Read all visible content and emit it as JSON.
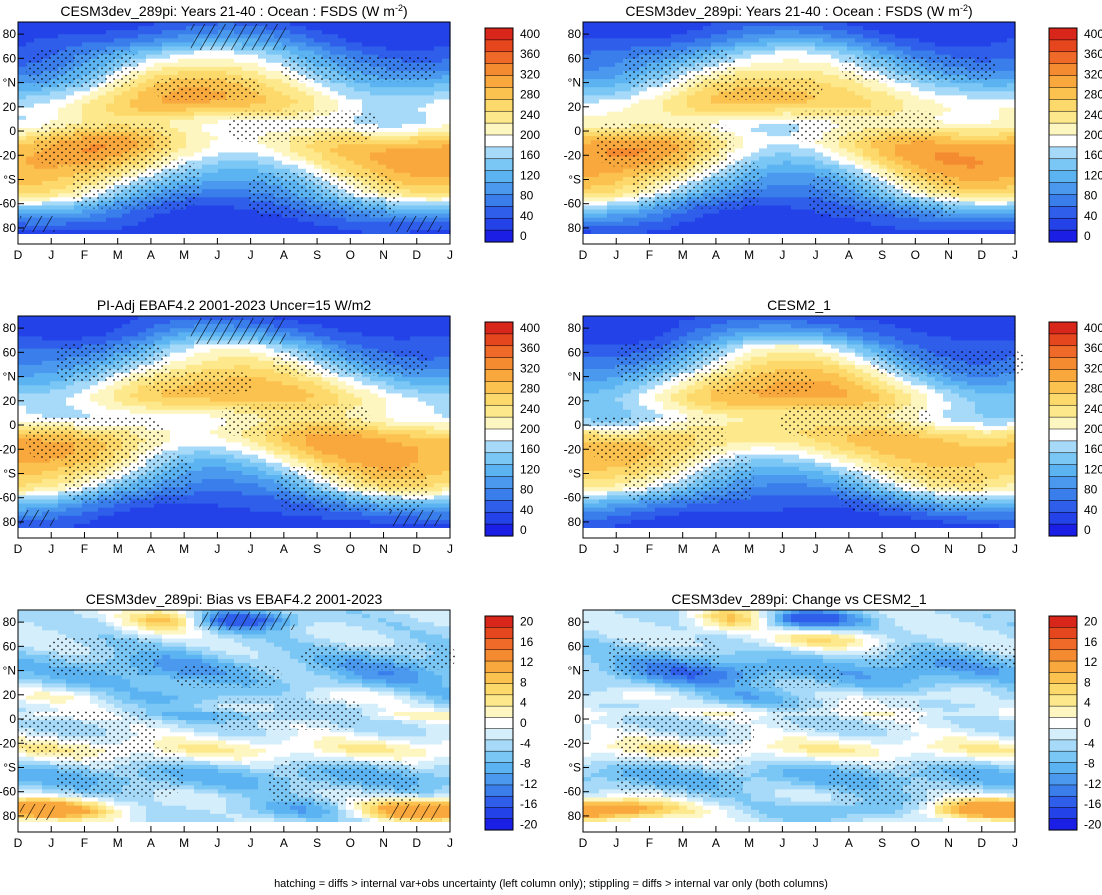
{
  "caption": "hatching = diffs > internal var+obs uncertainty (left column only); stippling = diffs > internal var only (both columns)",
  "palettes": {
    "abs": [
      "#1b1fe6",
      "#2342e8",
      "#2f5fea",
      "#3a7eec",
      "#4a99ef",
      "#5cb3f2",
      "#7ac6f4",
      "#a6daf8",
      "#ffffff",
      "#fef6c0",
      "#fde98c",
      "#fdd86a",
      "#fcc24f",
      "#f9a83d",
      "#f58b31",
      "#ef6a28",
      "#e6461e",
      "#d8261a"
    ],
    "diff": [
      "#1b1fe6",
      "#2342e8",
      "#2f5fea",
      "#3a7eec",
      "#4a99ef",
      "#5cb3f2",
      "#7ac6f4",
      "#a6daf8",
      "#d5eefb",
      "#ffffff",
      "#fef6c0",
      "#fde98c",
      "#fdd86a",
      "#fcc24f",
      "#f9a83d",
      "#f58b31",
      "#ef6a28",
      "#e6461e",
      "#d8261a"
    ]
  },
  "chart_data": [
    {
      "type": "heatmap",
      "id": "p1",
      "title": "CESM3dev_289pi: Years 21-40 : Ocean : FSDS (W m",
      "title_sup": "-2",
      "title_end": ")",
      "kind": "abs",
      "variant": 0,
      "hatched": true,
      "x": [
        "D",
        "J",
        "F",
        "M",
        "A",
        "M",
        "J",
        "J",
        "A",
        "S",
        "O",
        "N",
        "D",
        "J"
      ],
      "y_ticks": [
        "80",
        "60",
        "°N",
        "20",
        "0",
        "-20",
        "°S",
        "-60",
        "80"
      ],
      "colorbar_labels": [
        "400",
        "360",
        "320",
        "280",
        "240",
        "200",
        "160",
        "120",
        "80",
        "40",
        "0"
      ]
    },
    {
      "type": "heatmap",
      "id": "p2",
      "title": "CESM3dev_289pi: Years 21-40 : Ocean : FSDS (W m",
      "title_sup": "-2",
      "title_end": ")",
      "kind": "abs",
      "variant": 1,
      "hatched": false,
      "x": [
        "D",
        "J",
        "F",
        "M",
        "A",
        "M",
        "J",
        "J",
        "A",
        "S",
        "O",
        "N",
        "D",
        "J"
      ],
      "y_ticks": [
        "80",
        "60",
        "°N",
        "20",
        "0",
        "-20",
        "°S",
        "-60",
        "80"
      ],
      "colorbar_labels": [
        "400",
        "360",
        "320",
        "280",
        "240",
        "200",
        "160",
        "120",
        "80",
        "40",
        "0"
      ]
    },
    {
      "type": "heatmap",
      "id": "p3",
      "title": "PI-Adj EBAF4.2 2001-2023 Uncer=15 W/m2",
      "kind": "abs",
      "variant": 2,
      "hatched": true,
      "x": [
        "D",
        "J",
        "F",
        "M",
        "A",
        "M",
        "J",
        "J",
        "A",
        "S",
        "O",
        "N",
        "D",
        "J"
      ],
      "y_ticks": [
        "80",
        "60",
        "°N",
        "20",
        "0",
        "-20",
        "°S",
        "-60",
        "80"
      ],
      "colorbar_labels": [
        "400",
        "360",
        "320",
        "280",
        "240",
        "200",
        "160",
        "120",
        "80",
        "40",
        "0"
      ]
    },
    {
      "type": "heatmap",
      "id": "p4",
      "title": "CESM2_1",
      "kind": "abs",
      "variant": 3,
      "hatched": false,
      "x": [
        "D",
        "J",
        "F",
        "M",
        "A",
        "M",
        "J",
        "J",
        "A",
        "S",
        "O",
        "N",
        "D",
        "J"
      ],
      "y_ticks": [
        "80",
        "60",
        "°N",
        "20",
        "0",
        "-20",
        "°S",
        "-60",
        "80"
      ],
      "colorbar_labels": [
        "400",
        "360",
        "320",
        "280",
        "240",
        "200",
        "160",
        "120",
        "80",
        "40",
        "0"
      ]
    },
    {
      "type": "heatmap",
      "id": "p5",
      "title": "CESM3dev_289pi: Bias vs EBAF4.2 2001-2023",
      "kind": "bias",
      "variant": 4,
      "hatched": true,
      "x": [
        "D",
        "J",
        "F",
        "M",
        "A",
        "M",
        "J",
        "J",
        "A",
        "S",
        "O",
        "N",
        "D",
        "J"
      ],
      "y_ticks": [
        "80",
        "60",
        "°N",
        "20",
        "0",
        "-20",
        "°S",
        "-60",
        "80"
      ],
      "colorbar_labels": [
        "20",
        "16",
        "12",
        "8",
        "4",
        "0",
        "-4",
        "-8",
        "-12",
        "-16",
        "-20"
      ]
    },
    {
      "type": "heatmap",
      "id": "p6",
      "title": "CESM3dev_289pi: Change vs CESM2_1",
      "kind": "change",
      "variant": 5,
      "hatched": false,
      "x": [
        "D",
        "J",
        "F",
        "M",
        "A",
        "M",
        "J",
        "J",
        "A",
        "S",
        "O",
        "N",
        "D",
        "J"
      ],
      "y_ticks": [
        "80",
        "60",
        "°N",
        "20",
        "0",
        "-20",
        "°S",
        "-60",
        "80"
      ],
      "colorbar_labels": [
        "20",
        "16",
        "12",
        "8",
        "4",
        "0",
        "-4",
        "-8",
        "-12",
        "-16",
        "-20"
      ]
    }
  ]
}
